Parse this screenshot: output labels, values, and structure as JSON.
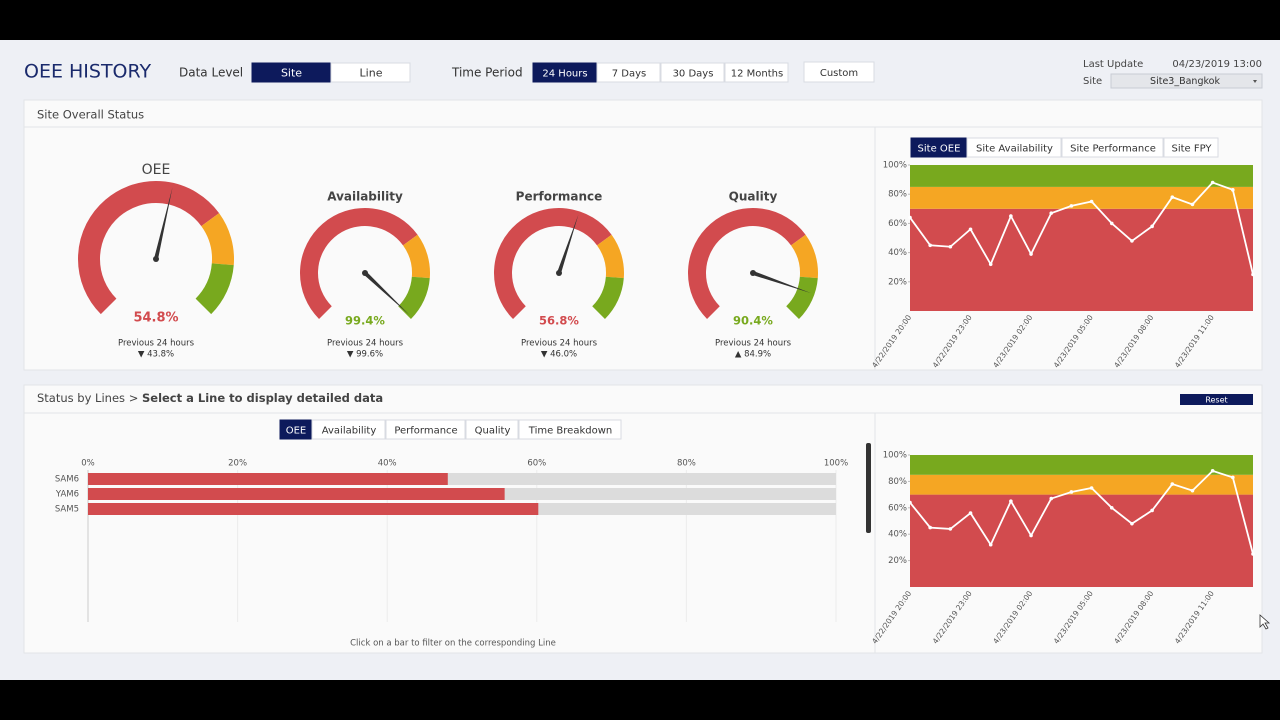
{
  "header": {
    "title": "OEE HISTORY",
    "data_level_label": "Data Level",
    "data_level_options": [
      "Site",
      "Line"
    ],
    "time_period_label": "Time Period",
    "time_period_options": [
      "24 Hours",
      "7 Days",
      "30 Days",
      "12 Months"
    ],
    "custom": "Custom",
    "last_update_label": "Last Update",
    "last_update": "04/23/2019 13:00",
    "site_label": "Site",
    "site_value": "Site3_Bangkok"
  },
  "site_panel": {
    "title": "Site Overall Status",
    "tabs": [
      "Site OEE",
      "Site Availability",
      "Site Performance",
      "Site FPY"
    ]
  },
  "lines_panel": {
    "title": "Status by Lines",
    "separator": ">",
    "instruction": "Select a Line to display detailed data",
    "reset": "Reset",
    "tabs": [
      "OEE",
      "Availability",
      "Performance",
      "Quality",
      "Time Breakdown"
    ],
    "footnote": "Click on a bar to filter on the corresponding Line"
  },
  "chart_data": [
    {
      "type": "gauge",
      "categories": [
        "OEE",
        "Availability",
        "Performance",
        "Quality"
      ],
      "values": [
        54.8,
        99.4,
        56.8,
        90.4
      ],
      "value_labels": [
        "54.8%",
        "99.4%",
        "56.8%",
        "90.4%"
      ],
      "note": "Previous 24 hours",
      "previous_labels": [
        "▼ 43.8%",
        "▼ 99.6%",
        "▼ 46.0%",
        "▲ 84.9%"
      ],
      "lim": [
        0,
        100
      ],
      "bands": [
        {
          "from": 0,
          "to": 70,
          "color": "#d24b4e"
        },
        {
          "from": 70,
          "to": 85,
          "color": "#f5a623"
        },
        {
          "from": 85,
          "to": 100,
          "color": "#78a91e"
        }
      ]
    },
    {
      "type": "line",
      "categories": [
        "4/22/2019 20:00",
        null,
        null,
        "4/22/2019 23:00",
        null,
        null,
        "4/23/2019 02:00",
        null,
        null,
        "4/23/2019 05:00",
        null,
        null,
        "4/23/2019 08:00",
        null,
        null,
        "4/23/2019 11:00",
        null,
        null
      ],
      "values": [
        64,
        45,
        44,
        56,
        32,
        65,
        39,
        67,
        72,
        75,
        60,
        48,
        58,
        78,
        73,
        88,
        83,
        25
      ],
      "color": "#ffffff",
      "ylim": [
        0,
        100
      ],
      "yticks": [
        {
          "value": 20,
          "label": "20%"
        },
        {
          "value": 40,
          "label": "40%"
        },
        {
          "value": 60,
          "label": "60%"
        },
        {
          "value": 80,
          "label": "80%"
        },
        {
          "value": 100,
          "label": "100%"
        }
      ],
      "bands": [
        {
          "from": 0,
          "to": 70,
          "color": "#d24b4e"
        },
        {
          "from": 70,
          "to": 85,
          "color": "#f5a623"
        },
        {
          "from": 85,
          "to": 100,
          "color": "#78a91e"
        }
      ]
    },
    {
      "type": "bar",
      "orientation": "horizontal",
      "categories": [
        "SAM6",
        "YAM6",
        "SAM5"
      ],
      "values": [
        48.1,
        55.7,
        60.2
      ],
      "color": "#d24b4e",
      "track_color": "#dcdcdc",
      "xlim": [
        0,
        100
      ],
      "xticks": [
        {
          "value": 0,
          "label": "0%"
        },
        {
          "value": 20,
          "label": "20%"
        },
        {
          "value": 40,
          "label": "40%"
        },
        {
          "value": 60,
          "label": "60%"
        },
        {
          "value": 80,
          "label": "80%"
        },
        {
          "value": 100,
          "label": "100%"
        }
      ],
      "grid": true
    },
    {
      "type": "line",
      "categories": [
        "4/22/2019 20:00",
        null,
        null,
        "4/22/2019 23:00",
        null,
        null,
        "4/23/2019 02:00",
        null,
        null,
        "4/23/2019 05:00",
        null,
        null,
        "4/23/2019 08:00",
        null,
        null,
        "4/23/2019 11:00",
        null,
        null
      ],
      "values": [
        64,
        45,
        44,
        56,
        32,
        65,
        39,
        67,
        72,
        75,
        60,
        48,
        58,
        78,
        73,
        88,
        83,
        25
      ],
      "color": "#ffffff",
      "ylim": [
        0,
        100
      ],
      "yticks": [
        {
          "value": 20,
          "label": "20%"
        },
        {
          "value": 40,
          "label": "40%"
        },
        {
          "value": 60,
          "label": "60%"
        },
        {
          "value": 80,
          "label": "80%"
        },
        {
          "value": 100,
          "label": "100%"
        }
      ],
      "bands": [
        {
          "from": 0,
          "to": 70,
          "color": "#d24b4e"
        },
        {
          "from": 70,
          "to": 85,
          "color": "#f5a623"
        },
        {
          "from": 85,
          "to": 100,
          "color": "#78a91e"
        }
      ]
    }
  ]
}
